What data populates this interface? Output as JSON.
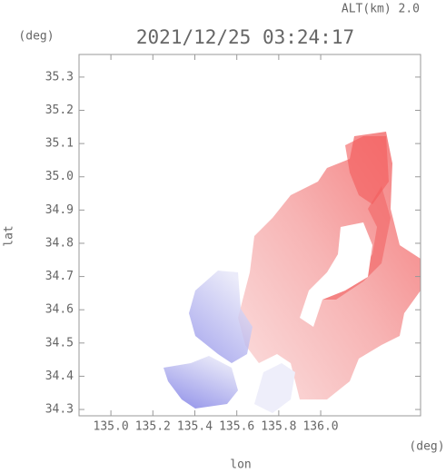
{
  "chart_data": {
    "type": "map",
    "title": "2021/12/25 03:24:17",
    "altitude_label": "ALT(km) 2.0",
    "x_label": "lon",
    "y_label": "lat",
    "x_unit": "(deg)",
    "y_unit": "(deg)",
    "xlim": [
      134.848,
      136.476
    ],
    "ylim": [
      34.281,
      35.368
    ],
    "xticks": [
      {
        "value": 135.0,
        "label": "135.0"
      },
      135.2,
      135.4,
      135.6,
      135.8,
      {
        "value": 136.0,
        "label": "136.0"
      }
    ],
    "yticks": [
      34.3,
      34.4,
      34.5,
      34.6,
      34.7,
      34.8,
      34.9,
      {
        "value": 35.0,
        "label": "35.0"
      },
      35.1,
      35.2,
      35.3
    ]
  }
}
